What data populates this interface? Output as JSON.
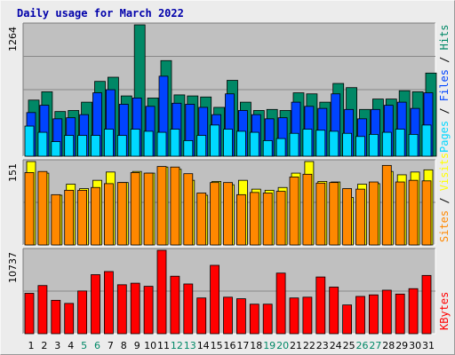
{
  "colors": {
    "background": "#ececec",
    "plot_bg": "#c0c0c0",
    "grid": "#888888",
    "title": "#0000aa",
    "pages": "#00d8ff",
    "files": "#0044ff",
    "hits": "#008866",
    "visits": "#ffff00",
    "sites": "#ff8800",
    "kbytes": "#ff0000",
    "weekend_label": "#008866",
    "weekday_label": "#000000"
  },
  "chart_data": {
    "type": "bar",
    "title": "Daily usage for March 2022",
    "categories": [
      "1",
      "2",
      "3",
      "4",
      "5",
      "6",
      "7",
      "8",
      "9",
      "10",
      "11",
      "12",
      "13",
      "14",
      "15",
      "16",
      "17",
      "18",
      "19",
      "20",
      "21",
      "22",
      "23",
      "24",
      "25",
      "26",
      "27",
      "28",
      "29",
      "30",
      "31"
    ],
    "weekend_days": [
      "5",
      "6",
      "12",
      "13",
      "19",
      "20",
      "26",
      "27"
    ],
    "panels": [
      {
        "id": "traffic",
        "max_label": "1264",
        "ylim": [
          0,
          1264
        ],
        "right_label_parts": [
          {
            "text": "Pages",
            "color": "#00d8ff"
          },
          {
            "text": " / ",
            "color": "#000000"
          },
          {
            "text": "Files",
            "color": "#0044ff"
          },
          {
            "text": " / ",
            "color": "#000000"
          },
          {
            "text": "Hits",
            "color": "#008866"
          }
        ],
        "series": [
          {
            "name": "Hits",
            "color": "#008866",
            "values": [
              540,
              620,
              430,
              440,
              520,
              720,
              760,
              580,
              1264,
              560,
              920,
              590,
              580,
              570,
              470,
              730,
              520,
              440,
              450,
              440,
              610,
              600,
              520,
              700,
              660,
              450,
              550,
              550,
              630,
              620,
              800
            ]
          },
          {
            "name": "Files",
            "color": "#0044ff",
            "values": [
              420,
              490,
              360,
              370,
              400,
              610,
              640,
              500,
              560,
              480,
              770,
              510,
              500,
              470,
              400,
              600,
              440,
              400,
              360,
              370,
              520,
              480,
              460,
              600,
              450,
              360,
              450,
              490,
              520,
              460,
              610
            ]
          },
          {
            "name": "Pages",
            "color": "#00d8ff",
            "values": [
              290,
              230,
              140,
              200,
              200,
              200,
              260,
              200,
              260,
              240,
              230,
              260,
              150,
              200,
              300,
              260,
              240,
              230,
              150,
              170,
              220,
              260,
              250,
              240,
              220,
              190,
              210,
              230,
              260,
              210,
              300
            ]
          }
        ]
      },
      {
        "id": "visitors",
        "max_label": "151",
        "ylim": [
          0,
          151
        ],
        "right_label_parts": [
          {
            "text": "Sites",
            "color": "#ff8800"
          },
          {
            "text": " / ",
            "color": "#000000"
          },
          {
            "text": "Visits",
            "color": "#ffff00"
          }
        ],
        "series": [
          {
            "name": "Visits",
            "color": "#ffff00",
            "values": [
              151,
              130,
              90,
              110,
              102,
              117,
              132,
              113,
              133,
              130,
              141,
              137,
              117,
              90,
              115,
              109,
              117,
              101,
              99,
              104,
              130,
              151,
              115,
              114,
              86,
              110,
              111,
              133,
              127,
              132,
              136
            ]
          },
          {
            "name": "Sites",
            "color": "#ff8800",
            "values": [
              131,
              133,
              91,
              99,
              99,
              104,
              111,
              113,
              131,
              130,
              142,
              141,
              129,
              94,
              113,
              113,
              91,
              95,
              94,
              97,
              123,
              128,
              112,
              113,
              102,
              101,
              114,
              144,
              114,
              117,
              116
            ]
          }
        ]
      },
      {
        "id": "volume",
        "max_label": "10737",
        "ylim": [
          0,
          10737
        ],
        "right_label_parts": [
          {
            "text": "KBytes",
            "color": "#ff0000"
          }
        ],
        "series": [
          {
            "name": "KBytes",
            "color": "#ff0000",
            "values": [
              5200,
              6200,
              4300,
              3900,
              5500,
              7600,
              8000,
              6300,
              6500,
              6100,
              10737,
              7400,
              6400,
              4600,
              8800,
              4700,
              4500,
              3800,
              3800,
              7800,
              4600,
              4700,
              7300,
              6000,
              3700,
              4800,
              5000,
              5600,
              5100,
              5800,
              7500
            ]
          }
        ]
      }
    ]
  }
}
